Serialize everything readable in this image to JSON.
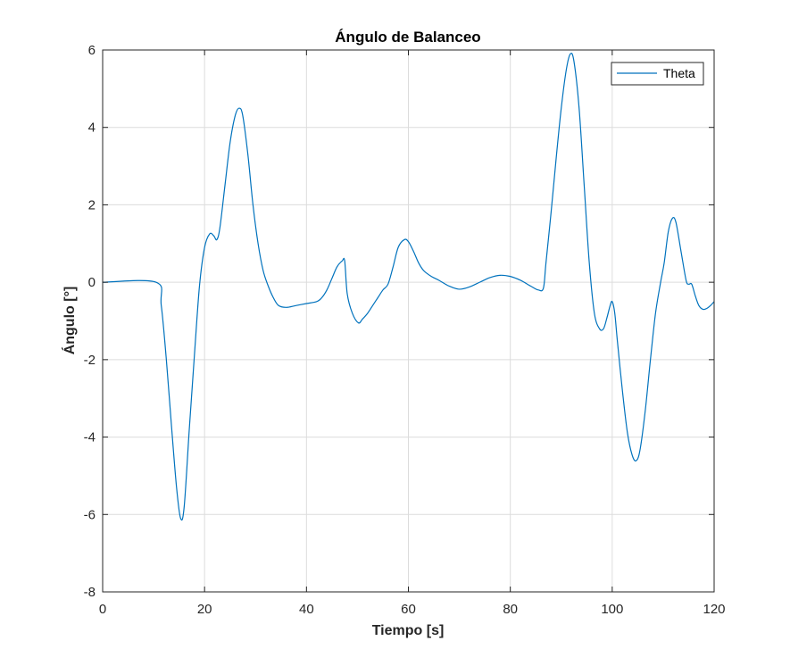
{
  "chart_data": {
    "type": "line",
    "title": "Ángulo de Balanceo",
    "xlabel": "Tiempo [s]",
    "ylabel": "Ángulo [°]",
    "xlim": [
      0,
      120
    ],
    "ylim": [
      -8,
      6
    ],
    "xticks": [
      0,
      20,
      40,
      60,
      80,
      100,
      120
    ],
    "yticks": [
      -8,
      -6,
      -4,
      -2,
      0,
      2,
      4,
      6
    ],
    "grid": true,
    "legend_position": "top-right",
    "series": [
      {
        "name": "Theta",
        "color": "#0072BD",
        "points": [
          [
            0,
            0
          ],
          [
            10.5,
            0
          ],
          [
            11.5,
            -0.6
          ],
          [
            12.5,
            -2.0
          ],
          [
            13.5,
            -3.7
          ],
          [
            14.5,
            -5.3
          ],
          [
            15.3,
            -6.1
          ],
          [
            16.0,
            -5.8
          ],
          [
            17.0,
            -3.8
          ],
          [
            18.0,
            -1.9
          ],
          [
            19.0,
            -0.1
          ],
          [
            20.0,
            0.9
          ],
          [
            21.0,
            1.25
          ],
          [
            21.8,
            1.2
          ],
          [
            22.4,
            1.1
          ],
          [
            23.0,
            1.4
          ],
          [
            24.0,
            2.5
          ],
          [
            25.0,
            3.6
          ],
          [
            26.0,
            4.3
          ],
          [
            26.8,
            4.5
          ],
          [
            27.5,
            4.3
          ],
          [
            28.5,
            3.3
          ],
          [
            29.5,
            2.0
          ],
          [
            30.5,
            1.0
          ],
          [
            31.5,
            0.3
          ],
          [
            32.5,
            -0.1
          ],
          [
            33.5,
            -0.4
          ],
          [
            34.5,
            -0.6
          ],
          [
            36.0,
            -0.65
          ],
          [
            38.0,
            -0.6
          ],
          [
            40.0,
            -0.55
          ],
          [
            42.0,
            -0.5
          ],
          [
            43.0,
            -0.4
          ],
          [
            44.0,
            -0.2
          ],
          [
            45.0,
            0.1
          ],
          [
            46.0,
            0.4
          ],
          [
            47.0,
            0.55
          ],
          [
            47.5,
            0.55
          ],
          [
            48.0,
            -0.3
          ],
          [
            49.0,
            -0.8
          ],
          [
            50.2,
            -1.05
          ],
          [
            51.0,
            -0.95
          ],
          [
            52.0,
            -0.8
          ],
          [
            53.0,
            -0.6
          ],
          [
            54.0,
            -0.4
          ],
          [
            55.0,
            -0.2
          ],
          [
            56.0,
            -0.05
          ],
          [
            57.0,
            0.4
          ],
          [
            58.0,
            0.9
          ],
          [
            59.2,
            1.1
          ],
          [
            60.0,
            1.05
          ],
          [
            61.0,
            0.8
          ],
          [
            62.0,
            0.5
          ],
          [
            63.0,
            0.3
          ],
          [
            64.5,
            0.15
          ],
          [
            66.0,
            0.05
          ],
          [
            68.0,
            -0.1
          ],
          [
            70.0,
            -0.18
          ],
          [
            72.0,
            -0.12
          ],
          [
            74.0,
            0.0
          ],
          [
            76.0,
            0.12
          ],
          [
            78.0,
            0.18
          ],
          [
            80.0,
            0.15
          ],
          [
            82.0,
            0.05
          ],
          [
            84.0,
            -0.1
          ],
          [
            85.5,
            -0.2
          ],
          [
            86.5,
            -0.15
          ],
          [
            87.0,
            0.5
          ],
          [
            88.0,
            1.8
          ],
          [
            89.0,
            3.2
          ],
          [
            90.0,
            4.5
          ],
          [
            91.0,
            5.5
          ],
          [
            91.8,
            5.9
          ],
          [
            92.5,
            5.7
          ],
          [
            93.5,
            4.5
          ],
          [
            94.5,
            2.5
          ],
          [
            95.5,
            0.5
          ],
          [
            96.5,
            -0.8
          ],
          [
            97.5,
            -1.2
          ],
          [
            98.3,
            -1.2
          ],
          [
            99.0,
            -0.9
          ],
          [
            99.6,
            -0.6
          ],
          [
            100.0,
            -0.5
          ],
          [
            100.5,
            -0.8
          ],
          [
            101.0,
            -1.5
          ],
          [
            102.0,
            -2.8
          ],
          [
            103.0,
            -3.9
          ],
          [
            104.0,
            -4.5
          ],
          [
            104.8,
            -4.6
          ],
          [
            105.5,
            -4.3
          ],
          [
            106.5,
            -3.3
          ],
          [
            107.5,
            -2.0
          ],
          [
            108.5,
            -0.8
          ],
          [
            109.5,
            0.0
          ],
          [
            110.2,
            0.5
          ],
          [
            111.0,
            1.3
          ],
          [
            111.8,
            1.65
          ],
          [
            112.5,
            1.55
          ],
          [
            113.5,
            0.8
          ],
          [
            114.5,
            0.05
          ],
          [
            115.0,
            -0.05
          ],
          [
            115.6,
            -0.05
          ],
          [
            116.3,
            -0.35
          ],
          [
            117.0,
            -0.6
          ],
          [
            117.8,
            -0.7
          ],
          [
            118.5,
            -0.68
          ],
          [
            119.3,
            -0.6
          ],
          [
            120.0,
            -0.5
          ]
        ]
      }
    ]
  }
}
